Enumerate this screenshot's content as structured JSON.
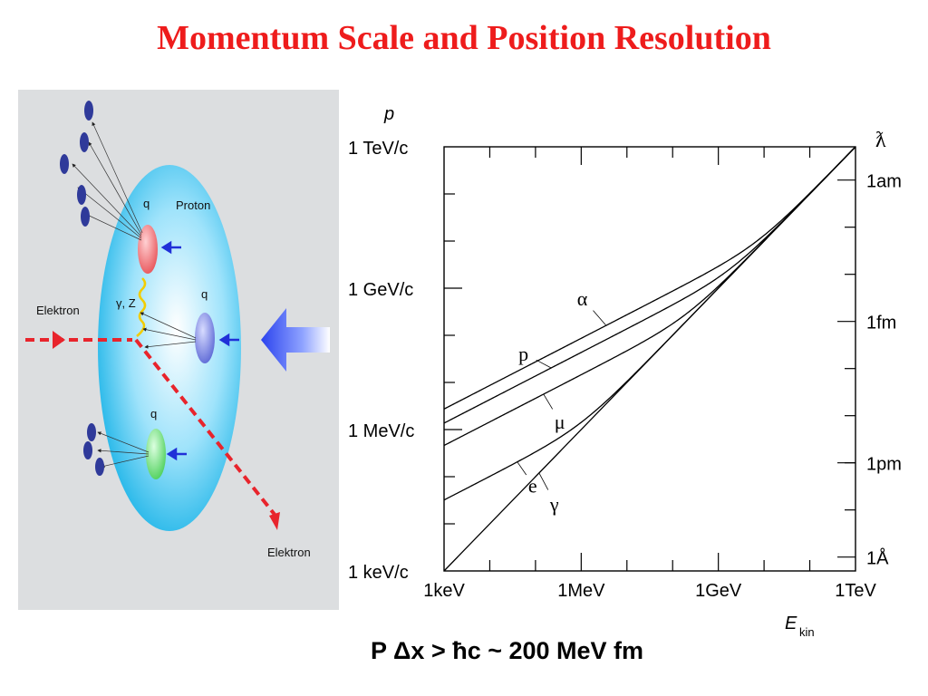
{
  "title": "Momentum Scale and Position Resolution",
  "diagram": {
    "proton_label": "Proton",
    "quark_label": "q",
    "electron_in_label": "Elektron",
    "electron_out_label": "Elektron",
    "boson_label": "γ, Z",
    "colors": {
      "proton": "#1fb5e8",
      "electron": "#e8242c",
      "quark_red": "#e8555a",
      "quark_blue": "#5d69d6",
      "quark_green": "#4ed05b",
      "fragments": "#2f3a9a",
      "arrow": "#2b43ee"
    }
  },
  "chart_data": {
    "type": "line",
    "x_scale": "log",
    "y_scale": "log",
    "x_unit": "eV",
    "y_unit": "eV/c",
    "xlim": [
      1000.0,
      1000000000000.0
    ],
    "ylim": [
      1000.0,
      1000000000000.0
    ],
    "y_label": "p",
    "x_label_main": "E",
    "x_label_sub": "kin",
    "right_axis_label": "ƛ",
    "x_ticks": [
      {
        "value": 1000.0,
        "label": "1keV"
      },
      {
        "value": 1000000.0,
        "label": "1MeV"
      },
      {
        "value": 1000000000.0,
        "label": "1GeV"
      },
      {
        "value": 1000000000000.0,
        "label": "1TeV"
      }
    ],
    "y_ticks": [
      {
        "value": 1000.0,
        "label": "1 keV/c"
      },
      {
        "value": 1000000.0,
        "label": "1 MeV/c"
      },
      {
        "value": 1000000000.0,
        "label": "1 GeV/c"
      },
      {
        "value": 1000000000000.0,
        "label": "1 TeV/c"
      }
    ],
    "right_ticks": [
      {
        "value": 1970.0,
        "label": "1Å"
      },
      {
        "value": 197000.0,
        "label": "1pm"
      },
      {
        "value": 197000000.0,
        "label": "1fm"
      },
      {
        "value": 197000000000.0,
        "label": "1am"
      }
    ],
    "series": [
      {
        "name": "γ",
        "mass_eV": 0
      },
      {
        "name": "e",
        "mass_eV": 511000
      },
      {
        "name": "μ",
        "mass_eV": 105700000
      },
      {
        "name": "p",
        "mass_eV": 938300000
      },
      {
        "name": "α",
        "mass_eV": 3727000000
      }
    ]
  },
  "formula": "P Δx > ħc ~ 200 MeV fm"
}
